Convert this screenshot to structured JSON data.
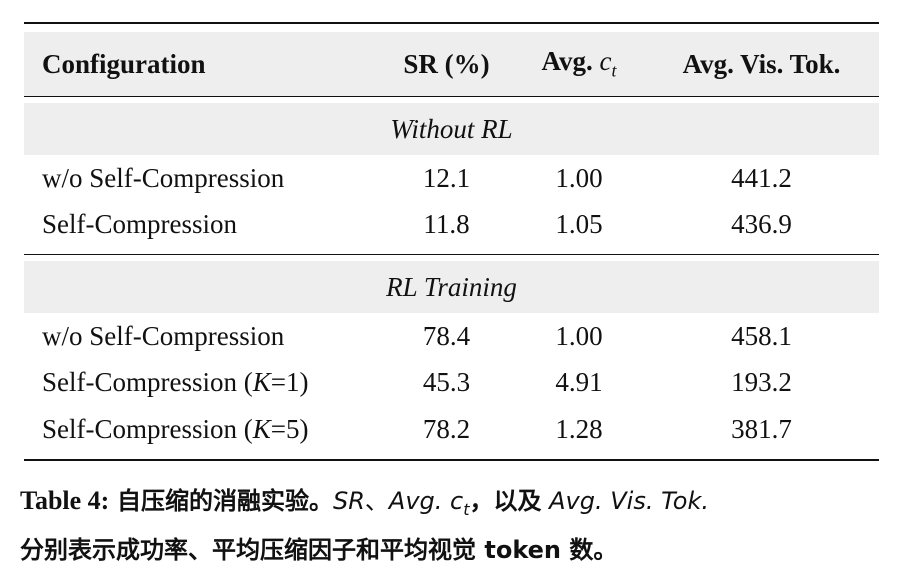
{
  "table": {
    "headers": [
      "Configuration",
      "SR (%)",
      "Avg. c_t",
      "Avg. Vis. Tok."
    ],
    "sections": [
      {
        "title": "Without RL",
        "rows": [
          [
            "w/o Self-Compression",
            "12.1",
            "1.00",
            "441.2"
          ],
          [
            "Self-Compression",
            "11.8",
            "1.05",
            "436.9"
          ]
        ]
      },
      {
        "title": "RL Training",
        "rows": [
          [
            "w/o Self-Compression",
            "78.4",
            "1.00",
            "458.1"
          ],
          [
            "Self-Compression (K=1)",
            "45.3",
            "4.91",
            "193.2"
          ],
          [
            "Self-Compression (K=5)",
            "78.2",
            "1.28",
            "381.7"
          ]
        ]
      }
    ]
  },
  "caption": {
    "label": "Table 4:",
    "title": "自压缩的消融实验。",
    "term_sr": "SR",
    "sep1": "、",
    "term_avg_c": "Avg. c",
    "term_avg_c_sub": "t",
    "sep2": "，以及",
    "term_avg_vis": "Avg. Vis. Tok.",
    "line2": "分别表示成功率、平均压缩因子和平均视觉 token 数。"
  }
}
